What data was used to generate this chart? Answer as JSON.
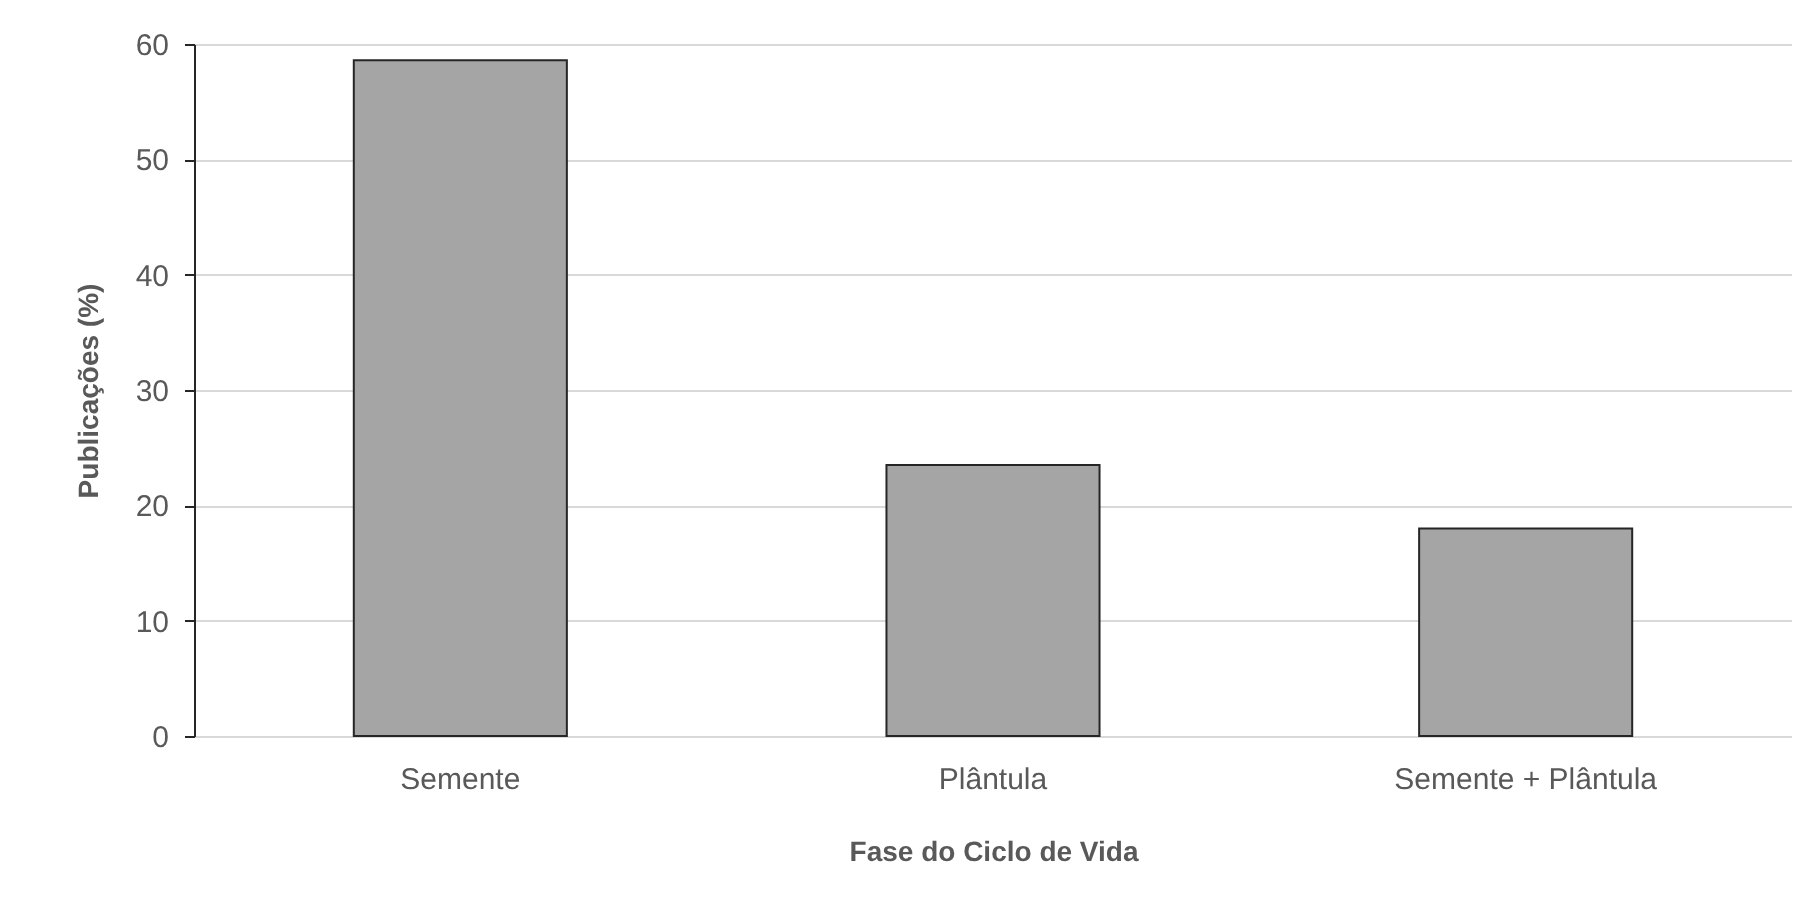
{
  "chart_data": {
    "type": "bar",
    "xlabel": "Fase do Ciclo de Vida",
    "ylabel": "Publicações (%)",
    "categories": [
      "Semente",
      "Plântula",
      "Semente + Plântula"
    ],
    "values": [
      58.6,
      23.5,
      18.0
    ],
    "color": "#a5a5a5",
    "ylim": [
      0,
      60
    ],
    "yticks": [
      0,
      10,
      20,
      30,
      40,
      50,
      60
    ],
    "grid": "y"
  }
}
